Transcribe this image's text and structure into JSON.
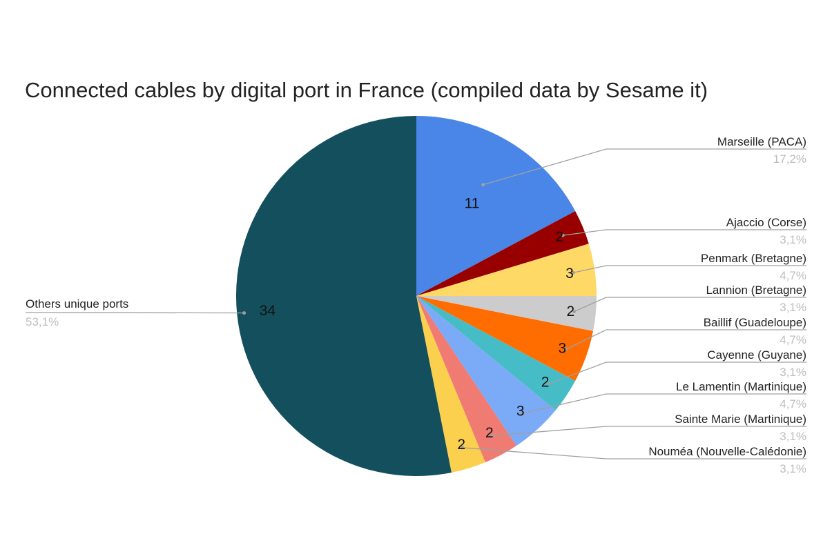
{
  "chart_data": {
    "type": "pie",
    "title": "Connected cables by digital port in France (compiled data by Sesame it)",
    "slices": [
      {
        "name": "Marseille (PACA)",
        "value": 11,
        "percent_label": "17,2%",
        "color": "#4a86e8"
      },
      {
        "name": "Ajaccio (Corse)",
        "value": 2,
        "percent_label": "3,1%",
        "color": "#980000"
      },
      {
        "name": "Penmark (Bretagne)",
        "value": 3,
        "percent_label": "4,7%",
        "color": "#ffd966"
      },
      {
        "name": "Lannion (Bretagne)",
        "value": 2,
        "percent_label": "3,1%",
        "color": "#cccccc"
      },
      {
        "name": "Baillif (Guadeloupe)",
        "value": 3,
        "percent_label": "4,7%",
        "color": "#ff6d01"
      },
      {
        "name": "Cayenne (Guyane)",
        "value": 2,
        "percent_label": "3,1%",
        "color": "#46bdc6"
      },
      {
        "name": "Le Lamentin (Martinique)",
        "value": 3,
        "percent_label": "4,7%",
        "color": "#7baaf7"
      },
      {
        "name": "Sainte Marie (Martinique)",
        "value": 2,
        "percent_label": "3,1%",
        "color": "#f07b72"
      },
      {
        "name": "Nouméa (Nouvelle-Calédonie)",
        "value": 2,
        "percent_label": "3,1%",
        "color": "#fcd04f"
      },
      {
        "name": "Others unique ports",
        "value": 34,
        "percent_label": "53,1%",
        "color": "#134f5c"
      }
    ],
    "total": 64,
    "legend_placement": "labels beside slices"
  }
}
